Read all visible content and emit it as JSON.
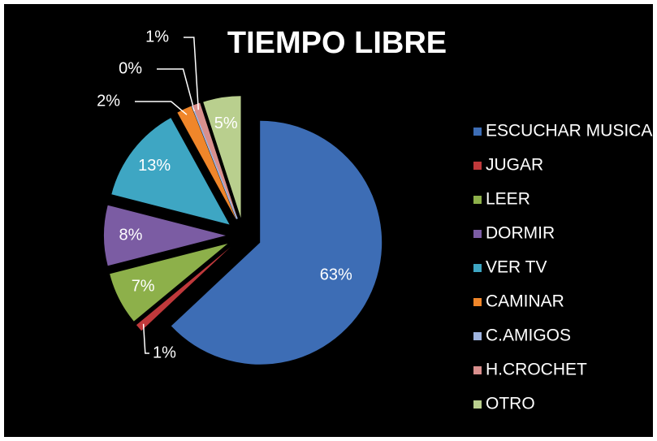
{
  "chart_data": {
    "type": "pie",
    "title": "TIEMPO LIBRE",
    "categories": [
      "ESCUCHAR MUSICA",
      "JUGAR",
      "LEER",
      "DORMIR",
      "VER TV",
      "CAMINAR",
      "C.AMIGOS",
      "H.CROCHET",
      "OTRO"
    ],
    "values": [
      63,
      1,
      7,
      8,
      13,
      2,
      0,
      1,
      5
    ],
    "value_labels": [
      "63%",
      "1%",
      "7%",
      "8%",
      "13%",
      "2%",
      "0%",
      "1%",
      "5%"
    ],
    "colors": [
      "#3d6db5",
      "#c0393b",
      "#8db04a",
      "#7b5ca3",
      "#3ea6c3",
      "#f0862a",
      "#9fb4df",
      "#d98f8d",
      "#b9cf8e"
    ],
    "legend": "right"
  }
}
